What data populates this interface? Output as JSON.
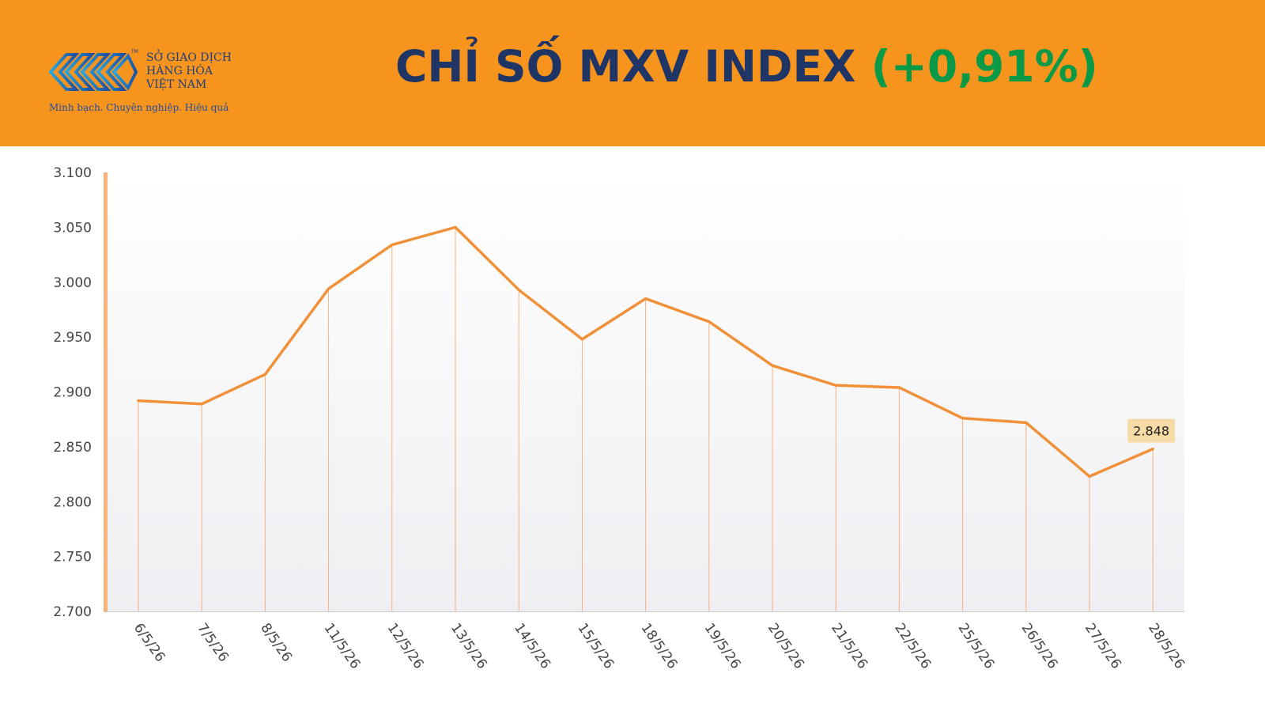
{
  "header": {
    "logo": {
      "name_lines": [
        "SỞ GIAO DỊCH",
        "HÀNG HÓA",
        "VIỆT NAM"
      ],
      "slogan": "Minh bạch. Chuyên nghiệp. Hiệu quả",
      "tm": "TM"
    },
    "title_main": "CHỈ SỐ MXV INDEX ",
    "title_change": "(+0,91%)"
  },
  "colors": {
    "header_bg": "#f7941d",
    "title": "#1e3566",
    "change": "#0a9a47",
    "line": "#f0913a",
    "drop_line": "#f6b27d",
    "label_bg": "#f6dba6"
  },
  "chart_data": {
    "type": "line",
    "categories": [
      "6/5/26",
      "7/5/26",
      "8/5/26",
      "11/5/26",
      "12/5/26",
      "13/5/26",
      "14/5/26",
      "15/5/26",
      "18/5/26",
      "19/5/26",
      "20/5/26",
      "21/5/26",
      "22/5/26",
      "25/5/26",
      "26/5/26",
      "27/5/26",
      "28/5/26"
    ],
    "series": [
      {
        "values": [
          2892,
          2889,
          2916,
          2994,
          3034,
          3050,
          2993,
          2948,
          2985,
          2964,
          2924,
          2906,
          2904,
          2876,
          2872,
          2823,
          2848
        ]
      }
    ],
    "yticks": [
      "2.700",
      "2.750",
      "2.800",
      "2.850",
      "2.900",
      "2.950",
      "3.000",
      "3.050",
      "3.100"
    ],
    "ylim": [
      2700,
      3100
    ],
    "last_label": "2.848",
    "title": "",
    "xlabel": "",
    "ylabel": "",
    "grid": false,
    "legend": "none"
  }
}
